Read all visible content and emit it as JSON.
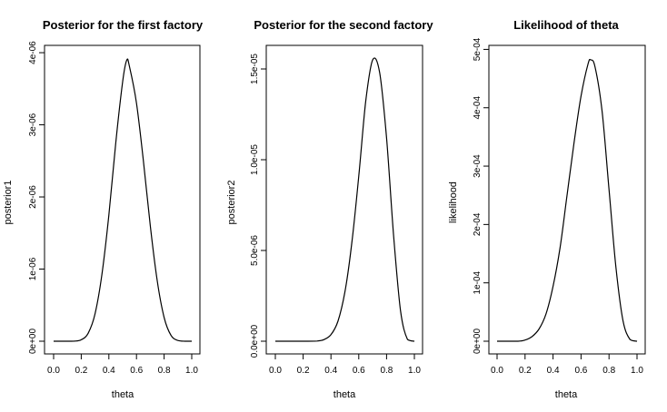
{
  "chart_data": [
    {
      "type": "line",
      "title": "Posterior for the first factory",
      "xlabel": "theta",
      "ylabel": "posterior1",
      "xlim": [
        0,
        1
      ],
      "ylim": [
        0,
        3.9e-06
      ],
      "x_ticks": [
        0,
        0.2,
        0.4,
        0.6,
        0.8,
        1.0
      ],
      "x_tick_labels": [
        "0.0",
        "0.2",
        "0.4",
        "0.6",
        "0.8",
        "1.0"
      ],
      "y_ticks": [
        0,
        1e-06,
        2e-06,
        3e-06,
        4e-06
      ],
      "y_tick_labels": [
        "0e+00",
        "1e-06",
        "2e-06",
        "3e-06",
        "4e-06"
      ],
      "series": [
        {
          "x": [
            0,
            0.1,
            0.15,
            0.2,
            0.25,
            0.3,
            0.35,
            0.4,
            0.45,
            0.5,
            0.53,
            0.55,
            0.6,
            0.65,
            0.7,
            0.75,
            0.8,
            0.85,
            0.9,
            0.95,
            1.0
          ],
          "values": [
            0,
            0,
            1e-09,
            2e-08,
            1.1e-07,
            3.8e-07,
            9.3e-07,
            1.75e-06,
            2.75e-06,
            3.6e-06,
            3.9e-06,
            3.8e-06,
            3.3e-06,
            2.5e-06,
            1.6e-06,
            8.4e-07,
            3.3e-07,
            8e-08,
            1e-08,
            0,
            0
          ]
        }
      ]
    },
    {
      "type": "line",
      "title": "Posterior for the second factory",
      "xlabel": "theta",
      "ylabel": "posterior2",
      "xlim": [
        0,
        1
      ],
      "ylim": [
        0,
        1.55e-05
      ],
      "x_ticks": [
        0,
        0.2,
        0.4,
        0.6,
        0.8,
        1.0
      ],
      "x_tick_labels": [
        "0.0",
        "0.2",
        "0.4",
        "0.6",
        "0.8",
        "1.0"
      ],
      "y_ticks": [
        0,
        5e-06,
        1e-05,
        1.5e-05
      ],
      "y_tick_labels": [
        "0.0e+00",
        "5.0e-06",
        "1.0e-05",
        "1.5e-05"
      ],
      "series": [
        {
          "x": [
            0,
            0.2,
            0.3,
            0.35,
            0.4,
            0.45,
            0.5,
            0.55,
            0.6,
            0.65,
            0.7,
            0.75,
            0.8,
            0.85,
            0.9,
            0.95,
            1.0
          ],
          "values": [
            0,
            0,
            1e-08,
            9e-08,
            3.6e-07,
            1.1e-06,
            2.7e-06,
            5.4e-06,
            9.1e-06,
            1.32e-05,
            1.55e-05,
            1.48e-05,
            1.12e-05,
            5.9e-06,
            1.7e-06,
            1e-07,
            0
          ]
        }
      ]
    },
    {
      "type": "line",
      "title": "Likelihood of theta",
      "xlabel": "theta",
      "ylabel": "likelihood",
      "xlim": [
        0,
        1
      ],
      "ylim": [
        0,
        0.000482
      ],
      "x_ticks": [
        0,
        0.2,
        0.4,
        0.6,
        0.8,
        1.0
      ],
      "x_tick_labels": [
        "0.0",
        "0.2",
        "0.4",
        "0.6",
        "0.8",
        "1.0"
      ],
      "y_ticks": [
        0,
        0.0001,
        0.0002,
        0.0003,
        0.0004,
        0.0005
      ],
      "y_tick_labels": [
        "0e+00",
        "1e-04",
        "2e-04",
        "3e-04",
        "4e-04",
        "5e-04"
      ],
      "series": [
        {
          "x": [
            0,
            0.15,
            0.2,
            0.25,
            0.3,
            0.35,
            0.4,
            0.45,
            0.5,
            0.55,
            0.6,
            0.65,
            0.67,
            0.7,
            0.75,
            0.8,
            0.85,
            0.9,
            0.95,
            1.0
          ],
          "values": [
            0,
            0,
            2e-06,
            8e-06,
            2.1e-05,
            4.7e-05,
            9.4e-05,
            0.00016,
            0.00025,
            0.00034,
            0.00042,
            0.000475,
            0.000482,
            0.00047,
            0.000395,
            0.00026,
            0.000125,
            3.5e-05,
            3e-06,
            0
          ]
        }
      ]
    }
  ]
}
